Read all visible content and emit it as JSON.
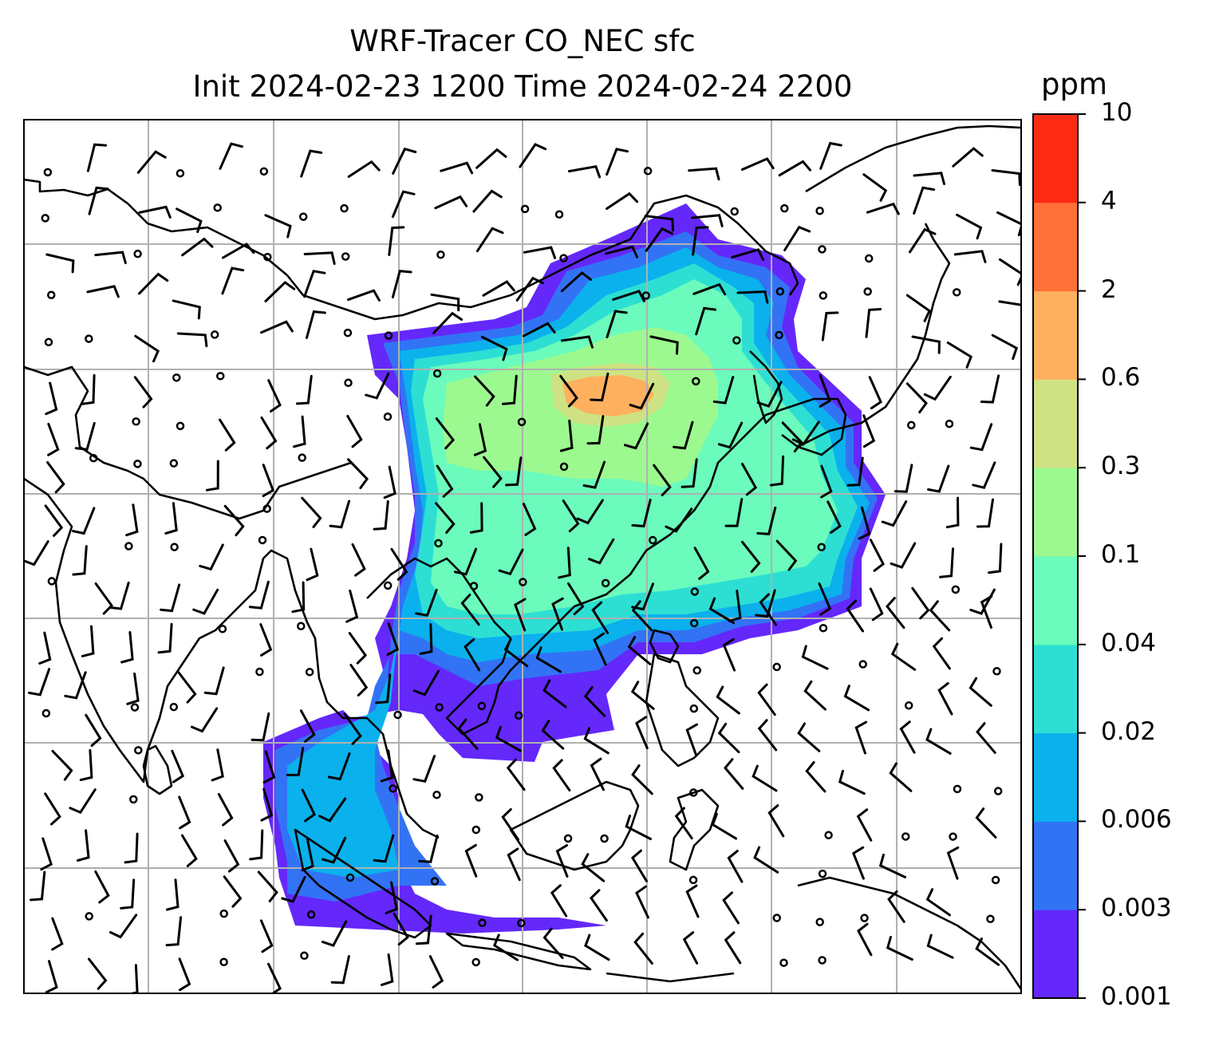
{
  "title": {
    "line1": "WRF-Tracer CO_NEC sfc",
    "line2": "Init 2024-02-23 1200 Time 2024-02-24 2200"
  },
  "colorbar": {
    "unit": "ppm",
    "ticks": [
      "0.001",
      "0.003",
      "0.006",
      "0.02",
      "0.04",
      "0.1",
      "0.3",
      "0.6",
      "2",
      "4",
      "10"
    ],
    "colors": [
      "#6428fa",
      "#3273f5",
      "#0ab1ec",
      "#2ddfd3",
      "#6bfbbc",
      "#9cf98f",
      "#cfe283",
      "#ffb05f",
      "#ff6f38",
      "#fd2a14"
    ]
  },
  "map": {
    "gridlines": true,
    "coastline_color": "#000000",
    "grid_color": "#b0b0b0"
  }
}
